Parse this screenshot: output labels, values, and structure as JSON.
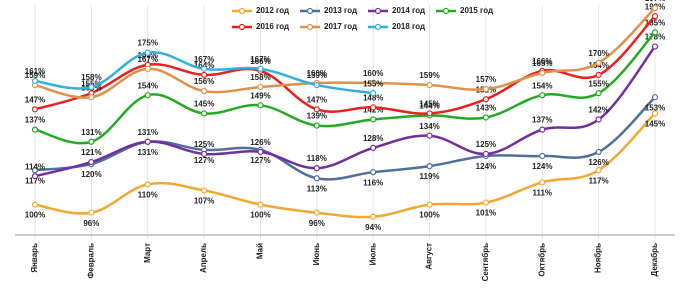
{
  "chart_data": {
    "type": "line",
    "categories": [
      "Январь",
      "Февраль",
      "Март",
      "Апрель",
      "Май",
      "Июнь",
      "Июль",
      "Август",
      "Сентябрь",
      "Октябрь",
      "Ноябрь",
      "Декабрь"
    ],
    "ylim": [
      85,
      198.5
    ],
    "series": [
      {
        "name": "2012 год",
        "color": "#f0a830",
        "values": [
          100,
          96,
          110,
          107,
          100,
          96,
          94,
          100,
          101,
          111,
          117,
          145
        ],
        "value_labels": [
          "100%",
          "96%",
          "110%",
          "107%",
          "100%",
          "96%",
          "94%",
          "100%",
          "101%",
          "111%",
          "117%",
          "145%"
        ]
      },
      {
        "name": "2013 год",
        "color": "#4f6f9f",
        "values": [
          117,
          120,
          131,
          127,
          127,
          113,
          116,
          119,
          124,
          124,
          126,
          153
        ],
        "value_labels": [
          "117%",
          "120%",
          "131%",
          "127%",
          "127%",
          "113%",
          "116%",
          "119%",
          "124%",
          "124%",
          "126%",
          "153%"
        ]
      },
      {
        "name": "2014 год",
        "color": "#7030a0",
        "values": [
          114,
          121,
          131,
          125,
          126,
          118,
          128,
          134,
          125,
          137,
          142,
          178
        ],
        "value_labels": [
          "114%",
          "121%",
          "131%",
          "125%",
          "126%",
          "118%",
          "128%",
          "134%",
          "125%",
          "137%",
          "142%",
          "178%"
        ]
      },
      {
        "name": "2015 год",
        "color": "#22aa22",
        "values": [
          137,
          131,
          154,
          145,
          149,
          139,
          142,
          144,
          143,
          154,
          155,
          185
        ],
        "value_labels": [
          "137%",
          "131%",
          "154%",
          "145%",
          "149%",
          "139%",
          "142%",
          "144%",
          "143%",
          "154%",
          "155%",
          "185%"
        ]
      },
      {
        "name": "2016 год",
        "color": "#e82020",
        "values": [
          147,
          155,
          169,
          164,
          166,
          147,
          148,
          145,
          152,
          166,
          164,
          193
        ],
        "value_labels": [
          "147%",
          "155%",
          "169%",
          "164%",
          "166%",
          "147%",
          "148%",
          "145%",
          "152%",
          "166%",
          "164%",
          "193%"
        ]
      },
      {
        "name": "2017 год",
        "color": "#e0904a",
        "values": [
          159,
          153,
          167,
          156,
          158,
          160,
          160,
          159,
          157,
          165,
          170,
          197
        ],
        "value_labels": [
          "159%",
          "153%",
          "167%",
          "156%",
          "158%",
          "160%",
          "160%",
          "159%",
          "157%",
          "165%",
          "170%",
          "197%"
        ]
      },
      {
        "name": "2018 год",
        "color": "#30b0e0",
        "values": [
          161,
          158,
          175,
          167,
          167,
          159,
          155,
          null,
          null,
          null,
          null,
          null
        ],
        "value_labels": [
          "161%",
          "158%",
          "175%",
          "167%",
          "167%",
          "159%",
          "155%",
          null,
          null,
          null,
          null,
          null
        ]
      }
    ]
  }
}
